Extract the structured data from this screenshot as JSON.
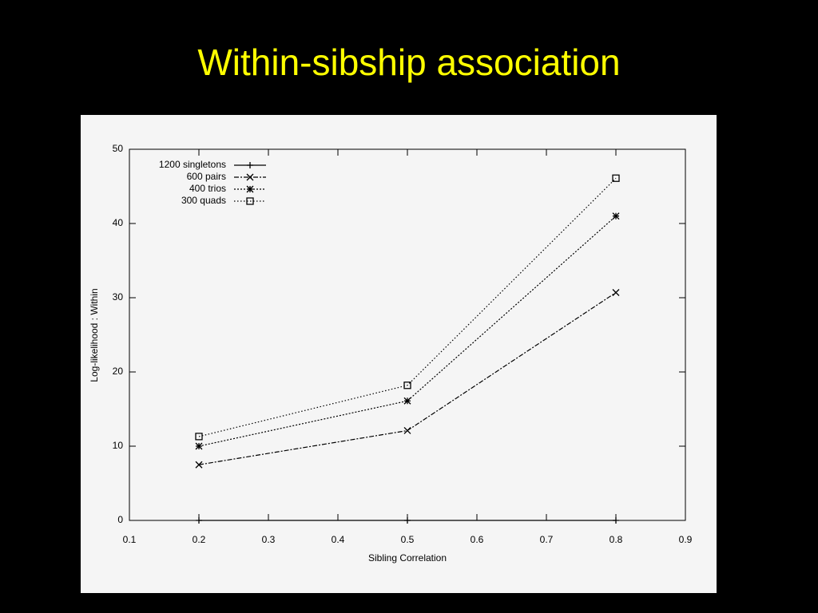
{
  "chart_data": {
    "type": "line",
    "title": "Within-sibship association",
    "x_label": "Sibling Correlation",
    "y_label": "Log-likelihood : Within",
    "x": [
      0.2,
      0.5,
      0.8
    ],
    "series": [
      {
        "name": "1200 singletons",
        "color": "#000000",
        "dash": "none",
        "marker": "plus",
        "values": [
          0,
          0,
          0
        ]
      },
      {
        "name": "600 pairs",
        "color": "#000000",
        "dash": "6 2 2 2",
        "marker": "cross",
        "values": [
          7.5,
          12.1,
          30.7
        ]
      },
      {
        "name": "400 trios",
        "color": "#000000",
        "dash": "2 2",
        "marker": "star",
        "values": [
          10.0,
          16.1,
          41.0
        ]
      },
      {
        "name": "300 quads",
        "color": "#000000",
        "dash": "1.5 2.5",
        "marker": "square",
        "values": [
          11.3,
          18.2,
          46.1
        ]
      }
    ],
    "xlim": [
      0.1,
      0.9
    ],
    "xticks": [
      0.1,
      0.2,
      0.3,
      0.4,
      0.5,
      0.6,
      0.7,
      0.8,
      0.9
    ],
    "ylim": [
      0,
      50
    ],
    "yticks": [
      0,
      10,
      20,
      30,
      40,
      50
    ],
    "legend": "top-left"
  }
}
